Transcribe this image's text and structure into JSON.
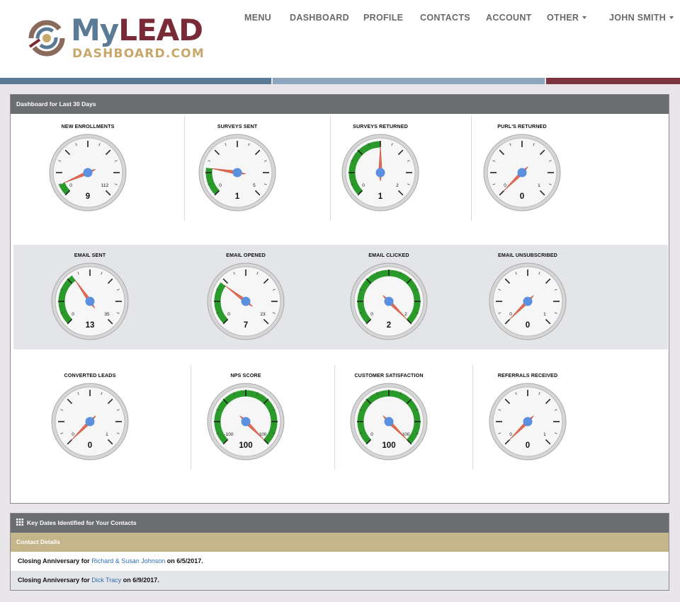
{
  "brand": {
    "name_part1": "My",
    "name_part2": "LEAD",
    "subtitle": "DASHBOARD.COM"
  },
  "nav": {
    "items": [
      "MENU",
      "DASHBOARD",
      "PROFILE",
      "CONTACTS",
      "ACCOUNT",
      "OTHER",
      "JOHN SMITH"
    ],
    "dropdown_items": [
      "OTHER",
      "JOHN SMITH"
    ]
  },
  "colors": {
    "stripe_blue_dark": "#587a94",
    "stripe_blue_light": "#8ea6bd",
    "stripe_maroon": "#7d3340",
    "panel_header": "#6b6d70",
    "gauge_green": "#2a9a2a",
    "needle": "#e46a52",
    "hub": "#5b8fe0",
    "contact_header": "#c5b68a",
    "link": "#2e6fb0"
  },
  "dashboard": {
    "title": "Dashboard for Last 30 Days",
    "rows": [
      {
        "shaded": false,
        "gauges": [
          {
            "label": "NEW ENROLLMENTS",
            "value": 9,
            "min": 0,
            "max": 112
          },
          {
            "label": "SURVEYS SENT",
            "value": 1,
            "min": 0,
            "max": 5
          },
          {
            "label": "SURVEYS RETURNED",
            "value": 1,
            "min": 0,
            "max": 2
          },
          {
            "label": "PURL'S RETURNED",
            "value": 0,
            "min": 0,
            "max": 1
          }
        ]
      },
      {
        "shaded": true,
        "gauges": [
          {
            "label": "EMAIL SENT",
            "value": 13,
            "min": 0,
            "max": 35
          },
          {
            "label": "EMAIL OPENED",
            "value": 7,
            "min": 0,
            "max": 23
          },
          {
            "label": "EMAIL CLICKED",
            "value": 2,
            "min": 0,
            "max": 2
          },
          {
            "label": "EMAIL UNSUBSCRIBED",
            "value": 0,
            "min": 0,
            "max": 1
          }
        ]
      },
      {
        "shaded": false,
        "gauges": [
          {
            "label": "CONVERTED LEADS",
            "value": 0,
            "min": 0,
            "max": 1
          },
          {
            "label": "NPS SCORE",
            "value": 100,
            "min": -100,
            "max": 100
          },
          {
            "label": "CUSTOMER SATISFACTION",
            "value": 100,
            "min": 0,
            "max": 100
          },
          {
            "label": "REFERRALS RECEIVED",
            "value": 0,
            "min": 0,
            "max": 1
          }
        ]
      }
    ]
  },
  "key_dates": {
    "title": "Key Dates Identified for Your Contacts",
    "subheader": "Contact Details",
    "rows": [
      {
        "prefix": "Closing Anniversary for ",
        "name": "Richard & Susan Johnson",
        "suffix": " on 6/5/2017."
      },
      {
        "prefix": "Closing Anniversary for ",
        "name": "Dick Tracy",
        "suffix": " on 6/9/2017."
      }
    ]
  }
}
